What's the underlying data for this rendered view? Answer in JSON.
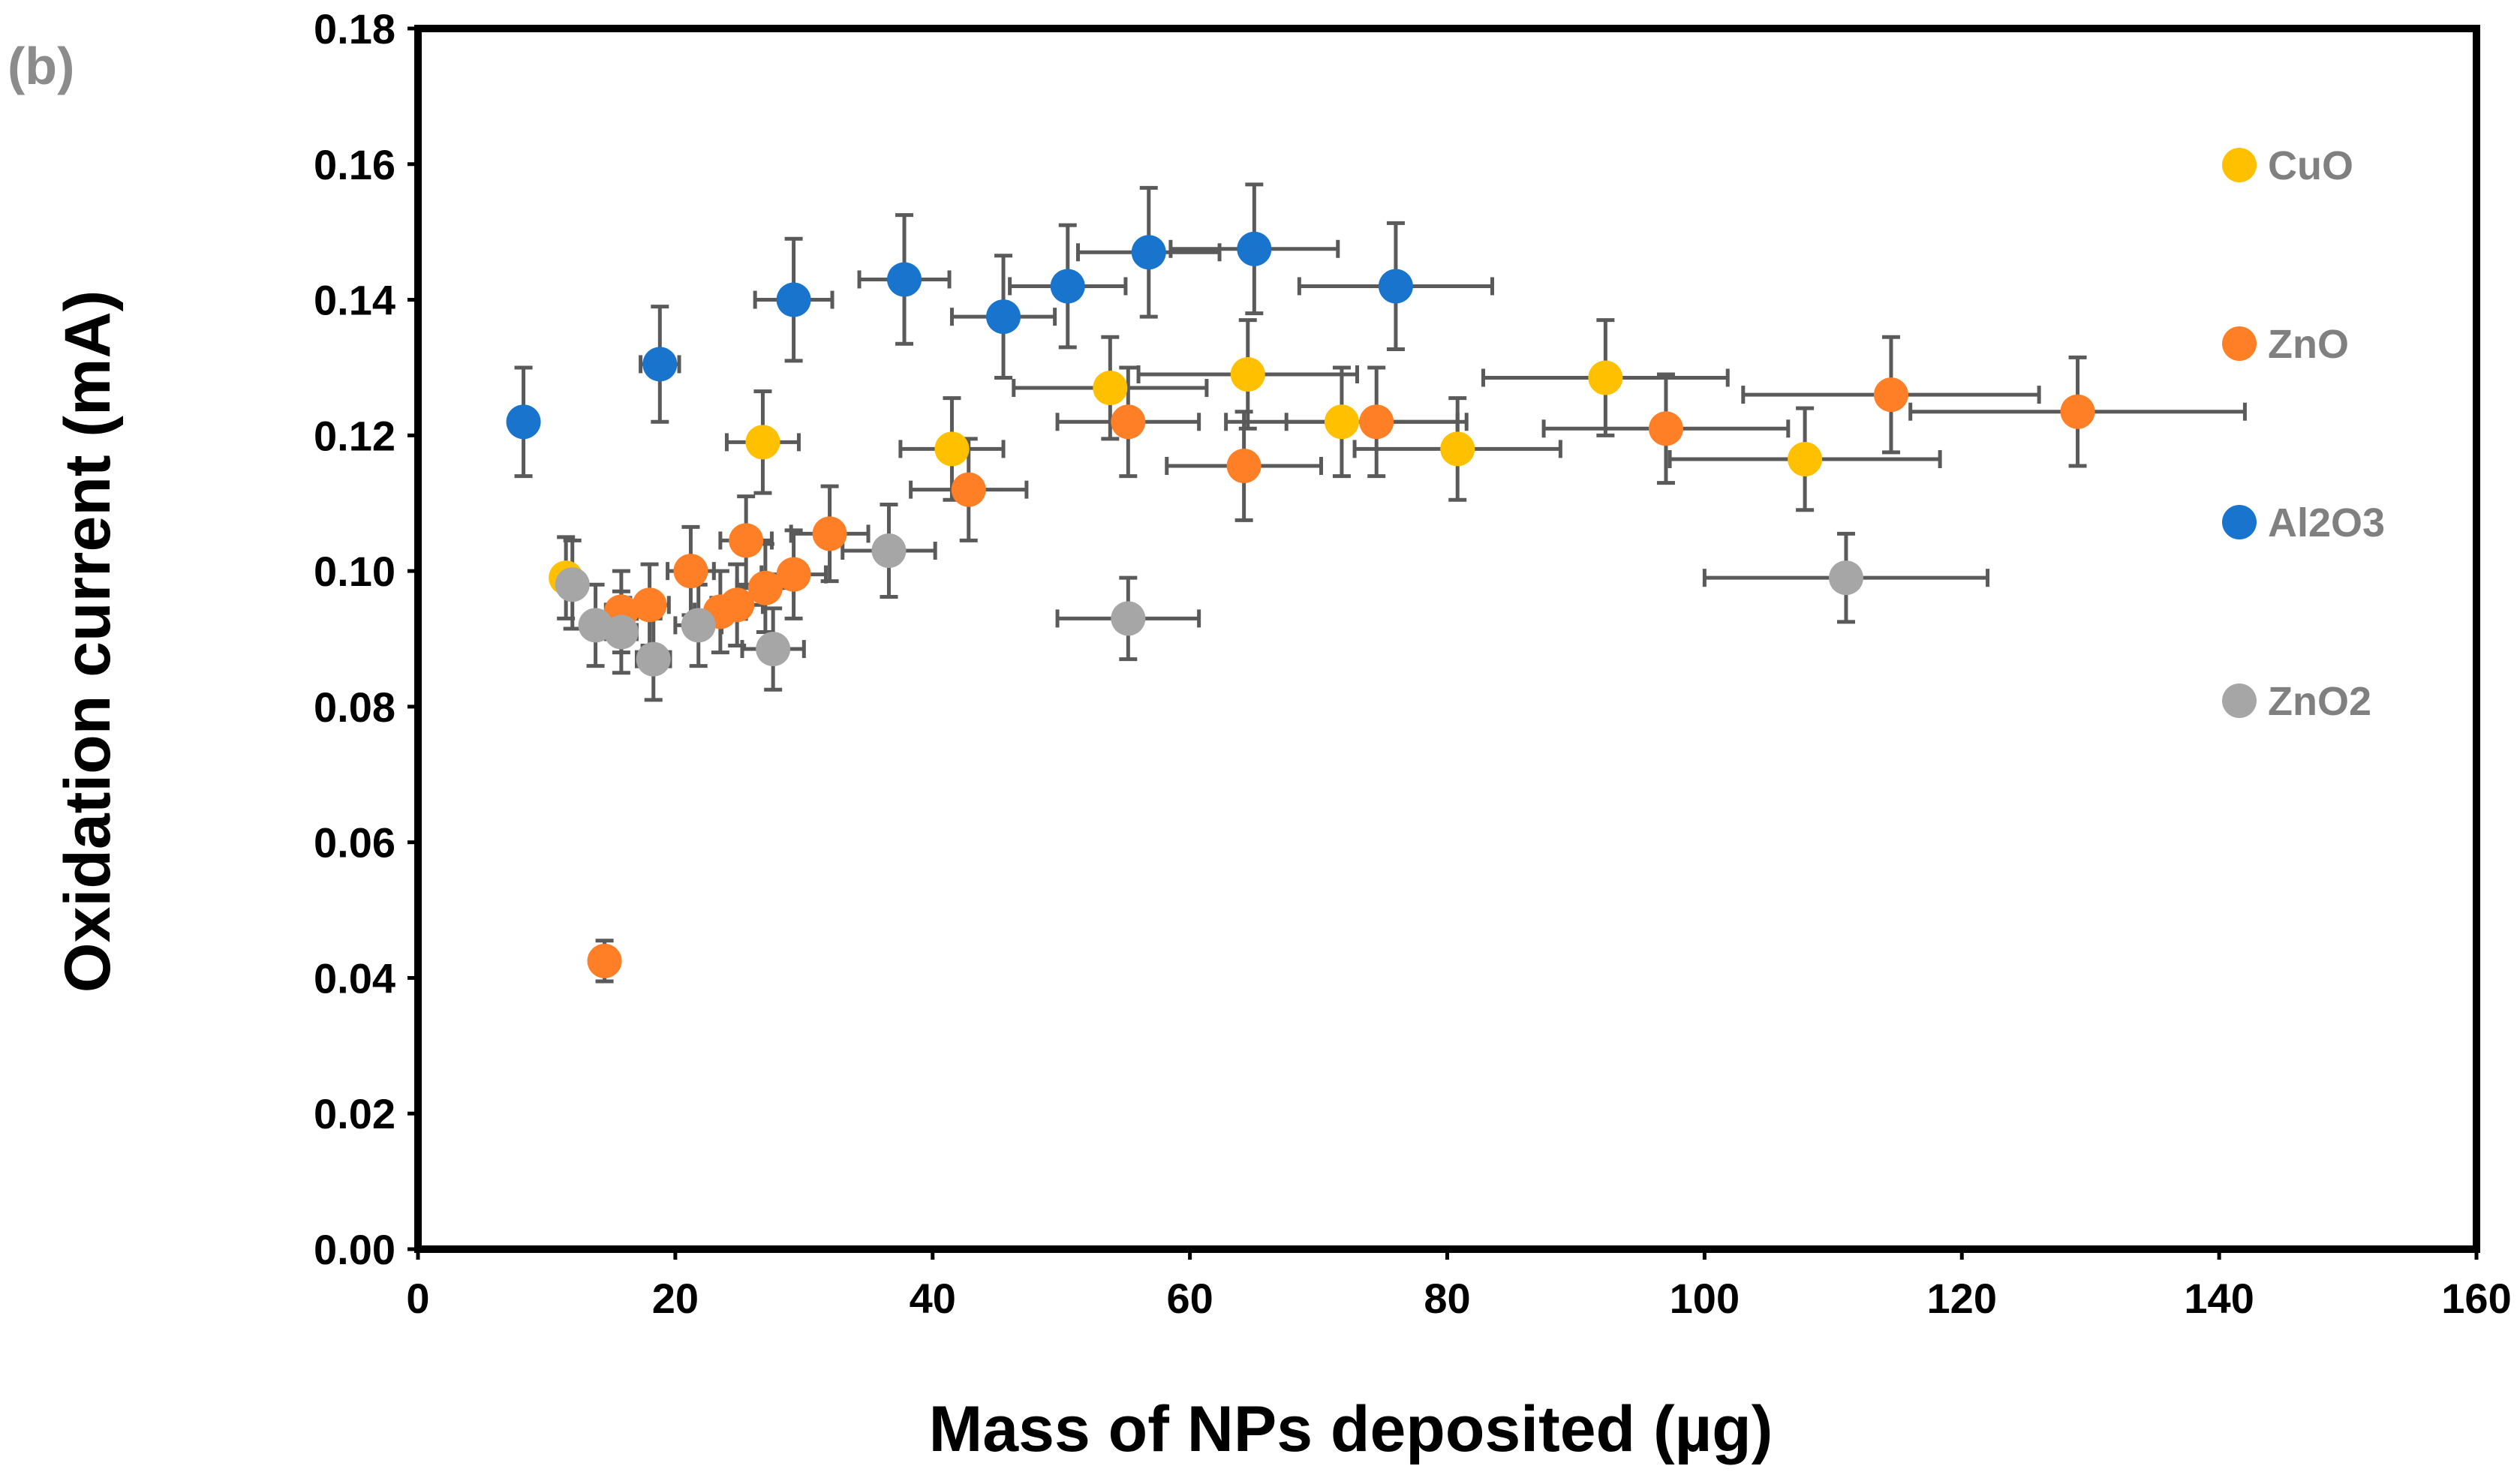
{
  "chart_data": {
    "type": "scatter",
    "panel_label": "(b)",
    "xlabel": "Mass of NPs deposited (µg)",
    "ylabel": "Oxidation current (mA)",
    "xlim": [
      0,
      160
    ],
    "ylim": [
      0,
      0.18
    ],
    "xticks": [
      0,
      20,
      40,
      60,
      80,
      100,
      120,
      140,
      160
    ],
    "yticks": [
      0.0,
      0.02,
      0.04,
      0.06,
      0.08,
      0.1,
      0.12,
      0.14,
      0.16,
      0.18
    ],
    "ytick_labels": [
      "0.00",
      "0.02",
      "0.04",
      "0.06",
      "0.08",
      "0.10",
      "0.12",
      "0.14",
      "0.16",
      "0.18"
    ],
    "xtick_labels": [
      "0",
      "20",
      "40",
      "60",
      "80",
      "100",
      "120",
      "140",
      "160"
    ],
    "grid": false,
    "legend_position": "right",
    "series": [
      {
        "name": "CuO",
        "color": "#FFC000",
        "points": [
          {
            "x": 11.5,
            "y": 0.099,
            "xerr": 1.0,
            "yerr": 0.006
          },
          {
            "x": 26.8,
            "y": 0.119,
            "xerr": 2.8,
            "yerr": 0.0075
          },
          {
            "x": 41.5,
            "y": 0.118,
            "xerr": 4.0,
            "yerr": 0.0075
          },
          {
            "x": 53.8,
            "y": 0.127,
            "xerr": 7.5,
            "yerr": 0.0075
          },
          {
            "x": 64.5,
            "y": 0.129,
            "xerr": 8.5,
            "yerr": 0.008
          },
          {
            "x": 71.8,
            "y": 0.122,
            "xerr": 9.0,
            "yerr": 0.008
          },
          {
            "x": 80.8,
            "y": 0.118,
            "xerr": 8.0,
            "yerr": 0.0075
          },
          {
            "x": 92.3,
            "y": 0.1285,
            "xerr": 9.5,
            "yerr": 0.0085
          },
          {
            "x": 107.8,
            "y": 0.1165,
            "xerr": 10.5,
            "yerr": 0.0075
          }
        ]
      },
      {
        "name": "ZnO",
        "color": "#FF7F27",
        "points": [
          {
            "x": 14.5,
            "y": 0.0425,
            "xerr": 1.0,
            "yerr": 0.003
          },
          {
            "x": 15.8,
            "y": 0.094,
            "xerr": 1.2,
            "yerr": 0.006
          },
          {
            "x": 18.0,
            "y": 0.095,
            "xerr": 1.5,
            "yerr": 0.006
          },
          {
            "x": 21.2,
            "y": 0.1,
            "xerr": 1.8,
            "yerr": 0.0065
          },
          {
            "x": 23.5,
            "y": 0.094,
            "xerr": 2.0,
            "yerr": 0.006
          },
          {
            "x": 24.8,
            "y": 0.095,
            "xerr": 2.0,
            "yerr": 0.006
          },
          {
            "x": 25.5,
            "y": 0.1045,
            "xerr": 2.0,
            "yerr": 0.0065
          },
          {
            "x": 27.0,
            "y": 0.0975,
            "xerr": 2.2,
            "yerr": 0.0065
          },
          {
            "x": 29.2,
            "y": 0.0995,
            "xerr": 2.5,
            "yerr": 0.0065
          },
          {
            "x": 32.0,
            "y": 0.1055,
            "xerr": 3.0,
            "yerr": 0.007
          },
          {
            "x": 42.8,
            "y": 0.112,
            "xerr": 4.5,
            "yerr": 0.0075
          },
          {
            "x": 55.2,
            "y": 0.122,
            "xerr": 5.5,
            "yerr": 0.008
          },
          {
            "x": 64.2,
            "y": 0.1155,
            "xerr": 6.0,
            "yerr": 0.008
          },
          {
            "x": 74.5,
            "y": 0.122,
            "xerr": 7.0,
            "yerr": 0.008
          },
          {
            "x": 97.0,
            "y": 0.121,
            "xerr": 9.5,
            "yerr": 0.008
          },
          {
            "x": 114.5,
            "y": 0.126,
            "xerr": 11.5,
            "yerr": 0.0085
          },
          {
            "x": 129.0,
            "y": 0.1235,
            "xerr": 13.0,
            "yerr": 0.008
          }
        ]
      },
      {
        "name": "Al2O3",
        "color": "#1874CD",
        "points": [
          {
            "x": 8.2,
            "y": 0.122,
            "xerr": 0.0,
            "yerr": 0.008
          },
          {
            "x": 18.8,
            "y": 0.1305,
            "xerr": 1.5,
            "yerr": 0.0085
          },
          {
            "x": 29.2,
            "y": 0.14,
            "xerr": 3.0,
            "yerr": 0.009
          },
          {
            "x": 37.8,
            "y": 0.143,
            "xerr": 3.5,
            "yerr": 0.0095
          },
          {
            "x": 45.5,
            "y": 0.1375,
            "xerr": 4.0,
            "yerr": 0.009
          },
          {
            "x": 50.5,
            "y": 0.142,
            "xerr": 4.5,
            "yerr": 0.009
          },
          {
            "x": 56.8,
            "y": 0.147,
            "xerr": 5.5,
            "yerr": 0.0095
          },
          {
            "x": 65.0,
            "y": 0.1475,
            "xerr": 6.5,
            "yerr": 0.0095
          },
          {
            "x": 76.0,
            "y": 0.142,
            "xerr": 7.5,
            "yerr": 0.0093
          }
        ]
      },
      {
        "name": "ZnO2",
        "color": "#A6A6A6",
        "points": [
          {
            "x": 12.0,
            "y": 0.098,
            "xerr": 0.0,
            "yerr": 0.0065
          },
          {
            "x": 13.8,
            "y": 0.092,
            "xerr": 1.0,
            "yerr": 0.006
          },
          {
            "x": 15.8,
            "y": 0.091,
            "xerr": 1.2,
            "yerr": 0.006
          },
          {
            "x": 18.3,
            "y": 0.087,
            "xerr": 1.3,
            "yerr": 0.006
          },
          {
            "x": 21.8,
            "y": 0.092,
            "xerr": 1.8,
            "yerr": 0.006
          },
          {
            "x": 27.6,
            "y": 0.0885,
            "xerr": 2.4,
            "yerr": 0.006
          },
          {
            "x": 36.6,
            "y": 0.103,
            "xerr": 3.6,
            "yerr": 0.0068
          },
          {
            "x": 55.2,
            "y": 0.093,
            "xerr": 5.5,
            "yerr": 0.006
          },
          {
            "x": 111.0,
            "y": 0.099,
            "xerr": 11.0,
            "yerr": 0.0065
          }
        ]
      }
    ]
  }
}
